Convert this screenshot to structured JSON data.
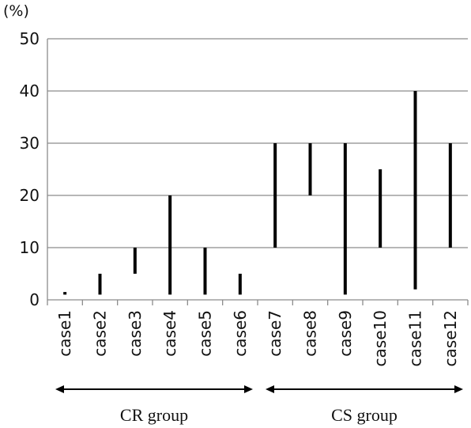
{
  "chart_data": {
    "type": "range-bar",
    "unit_label": "(%)",
    "ylim": [
      0,
      50
    ],
    "yticks": [
      0,
      10,
      20,
      30,
      40,
      50
    ],
    "grid": true,
    "categories": [
      "case1",
      "case2",
      "case3",
      "case4",
      "case5",
      "case6",
      "case7",
      "case8",
      "case9",
      "case10",
      "case11",
      "case12"
    ],
    "ranges": [
      {
        "low": 1,
        "high": 1.5
      },
      {
        "low": 1,
        "high": 5
      },
      {
        "low": 5,
        "high": 10
      },
      {
        "low": 1,
        "high": 20
      },
      {
        "low": 1,
        "high": 10
      },
      {
        "low": 1,
        "high": 5
      },
      {
        "low": 10,
        "high": 30
      },
      {
        "low": 20,
        "high": 30
      },
      {
        "low": 1,
        "high": 30
      },
      {
        "low": 10,
        "high": 25
      },
      {
        "low": 2,
        "high": 40
      },
      {
        "low": 10,
        "high": 30
      }
    ],
    "groups": [
      {
        "label": "CR group",
        "from": 0,
        "to": 5
      },
      {
        "label": "CS group",
        "from": 6,
        "to": 11
      }
    ],
    "colors": {
      "bar": "#000000",
      "grid": "#8c8c8c",
      "axis": "#8c8c8c"
    }
  }
}
